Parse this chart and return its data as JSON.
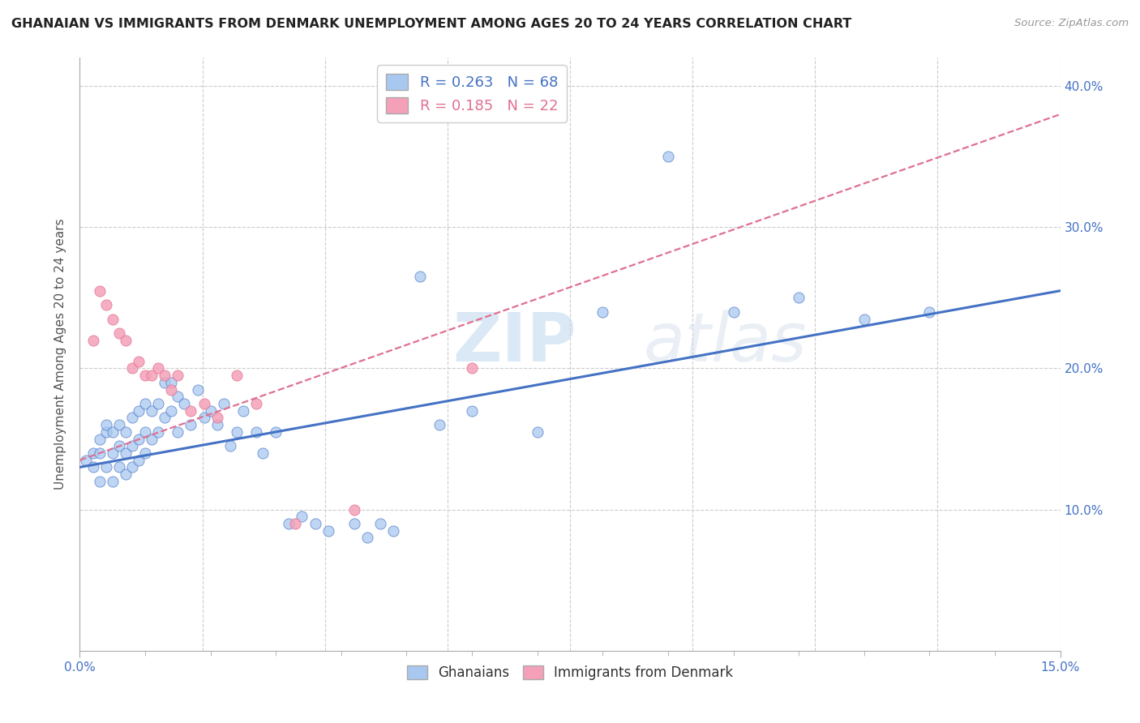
{
  "title": "GHANAIAN VS IMMIGRANTS FROM DENMARK UNEMPLOYMENT AMONG AGES 20 TO 24 YEARS CORRELATION CHART",
  "source": "Source: ZipAtlas.com",
  "ylabel": "Unemployment Among Ages 20 to 24 years",
  "xlim": [
    0.0,
    0.15
  ],
  "ylim": [
    0.0,
    0.42
  ],
  "ytick_vals": [
    0.1,
    0.2,
    0.3,
    0.4
  ],
  "ytick_labels": [
    "10.0%",
    "20.0%",
    "30.0%",
    "40.0%"
  ],
  "xtick_vals": [
    0.0,
    0.15
  ],
  "xtick_labels": [
    "0.0%",
    "15.0%"
  ],
  "legend_r1": "R = 0.263",
  "legend_n1": "N = 68",
  "legend_r2": "R = 0.185",
  "legend_n2": "N = 22",
  "color_blue": "#A8C8F0",
  "color_pink": "#F4A0B8",
  "color_blue_dark": "#4472C4",
  "color_pink_dark": "#E07090",
  "background_color": "#FFFFFF",
  "grid_color": "#CCCCCC",
  "ghanaian_x": [
    0.001,
    0.002,
    0.002,
    0.003,
    0.003,
    0.003,
    0.004,
    0.004,
    0.004,
    0.005,
    0.005,
    0.005,
    0.006,
    0.006,
    0.006,
    0.007,
    0.007,
    0.007,
    0.008,
    0.008,
    0.008,
    0.009,
    0.009,
    0.009,
    0.01,
    0.01,
    0.01,
    0.011,
    0.011,
    0.012,
    0.012,
    0.013,
    0.013,
    0.014,
    0.014,
    0.015,
    0.015,
    0.016,
    0.017,
    0.018,
    0.019,
    0.02,
    0.021,
    0.022,
    0.023,
    0.024,
    0.025,
    0.027,
    0.028,
    0.03,
    0.032,
    0.034,
    0.036,
    0.038,
    0.042,
    0.044,
    0.046,
    0.048,
    0.052,
    0.055,
    0.06,
    0.07,
    0.08,
    0.09,
    0.1,
    0.11,
    0.12,
    0.13
  ],
  "ghanaian_y": [
    0.135,
    0.13,
    0.14,
    0.12,
    0.14,
    0.15,
    0.13,
    0.155,
    0.16,
    0.12,
    0.14,
    0.155,
    0.13,
    0.145,
    0.16,
    0.125,
    0.14,
    0.155,
    0.13,
    0.145,
    0.165,
    0.135,
    0.15,
    0.17,
    0.14,
    0.155,
    0.175,
    0.15,
    0.17,
    0.155,
    0.175,
    0.165,
    0.19,
    0.17,
    0.19,
    0.155,
    0.18,
    0.175,
    0.16,
    0.185,
    0.165,
    0.17,
    0.16,
    0.175,
    0.145,
    0.155,
    0.17,
    0.155,
    0.14,
    0.155,
    0.09,
    0.095,
    0.09,
    0.085,
    0.09,
    0.08,
    0.09,
    0.085,
    0.265,
    0.16,
    0.17,
    0.155,
    0.24,
    0.35,
    0.24,
    0.25,
    0.235,
    0.24
  ],
  "denmark_x": [
    0.002,
    0.003,
    0.004,
    0.005,
    0.006,
    0.007,
    0.008,
    0.009,
    0.01,
    0.011,
    0.012,
    0.013,
    0.014,
    0.015,
    0.017,
    0.019,
    0.021,
    0.024,
    0.027,
    0.033,
    0.042,
    0.06
  ],
  "denmark_y": [
    0.22,
    0.255,
    0.245,
    0.235,
    0.225,
    0.22,
    0.2,
    0.205,
    0.195,
    0.195,
    0.2,
    0.195,
    0.185,
    0.195,
    0.17,
    0.175,
    0.165,
    0.195,
    0.175,
    0.09,
    0.1,
    0.2
  ],
  "blue_line_x0": 0.0,
  "blue_line_x1": 0.15,
  "blue_line_y0": 0.13,
  "blue_line_y1": 0.255,
  "pink_line_x0": 0.0,
  "pink_line_x1": 0.15,
  "pink_line_y0": 0.135,
  "pink_line_y1": 0.38
}
